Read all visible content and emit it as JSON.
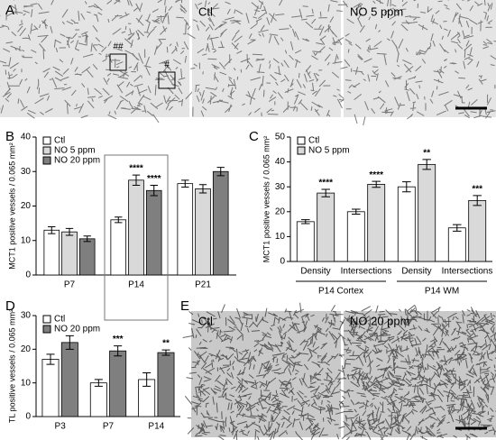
{
  "panels": {
    "labels": [
      "A",
      "B",
      "C",
      "D",
      "E"
    ],
    "image_a": {
      "markers": [
        "##",
        "#"
      ],
      "ctl": "Ctl",
      "treated": "NO 5 ppm"
    },
    "image_e": {
      "ctl": "Ctl",
      "treated": "NO 20 ppm"
    }
  },
  "chart_data": [
    {
      "type": "bar",
      "ylabel": "MCT1 positive vessels / 0.065 mm²",
      "categories": [
        "P7",
        "P14",
        "P21"
      ],
      "series": [
        {
          "name": "Ctl",
          "color": "#ffffff",
          "values": [
            13,
            16,
            26.5
          ],
          "errors": [
            1,
            0.8,
            1
          ],
          "annotations": [
            null,
            null,
            null
          ]
        },
        {
          "name": "NO 5 ppm",
          "color": "#d9d9d9",
          "values": [
            12.5,
            27.5,
            25
          ],
          "errors": [
            1,
            1.5,
            1.2
          ],
          "annotations": [
            null,
            "****",
            null
          ]
        },
        {
          "name": "NO 20 ppm",
          "color": "#7f7f7f",
          "values": [
            10.5,
            24.5,
            30
          ],
          "errors": [
            0.8,
            1.5,
            1.2
          ],
          "annotations": [
            null,
            "****",
            null
          ]
        }
      ],
      "ylim": [
        0,
        40
      ],
      "yticks": [
        0,
        10,
        20,
        30,
        40
      ]
    },
    {
      "type": "bar",
      "ylabel": "MCT1 positive vessels / 0.065 mm²",
      "categories": [
        "Density",
        "Intersections",
        "Density",
        "Intersections"
      ],
      "groups": [
        "P14 Cortex",
        "P14 WM"
      ],
      "series": [
        {
          "name": "Ctl",
          "color": "#ffffff",
          "values": [
            16,
            20,
            30,
            13.5
          ],
          "errors": [
            0.8,
            1,
            2,
            1.3
          ],
          "annotations": [
            null,
            null,
            null,
            null
          ]
        },
        {
          "name": "NO 5 ppm",
          "color": "#d9d9d9",
          "values": [
            27.5,
            31,
            39,
            24.5
          ],
          "errors": [
            1.5,
            1.2,
            2,
            2
          ],
          "annotations": [
            "****",
            "****",
            "**",
            "***"
          ]
        }
      ],
      "ylim": [
        0,
        50
      ],
      "yticks": [
        0,
        10,
        20,
        30,
        40,
        50
      ]
    },
    {
      "type": "bar",
      "ylabel": "TL positive vessels / 0.065 mm²",
      "categories": [
        "P3",
        "P7",
        "P14"
      ],
      "series": [
        {
          "name": "Ctl",
          "color": "#ffffff",
          "values": [
            17,
            10,
            11
          ],
          "errors": [
            1.5,
            1,
            2
          ],
          "annotations": [
            null,
            null,
            null
          ]
        },
        {
          "name": "NO 20 ppm",
          "color": "#7f7f7f",
          "values": [
            22,
            19.5,
            19
          ],
          "errors": [
            2,
            1.5,
            0.8
          ],
          "annotations": [
            null,
            "***",
            "**"
          ]
        }
      ],
      "ylim": [
        0,
        30
      ],
      "yticks": [
        0,
        10,
        20,
        30
      ]
    }
  ]
}
